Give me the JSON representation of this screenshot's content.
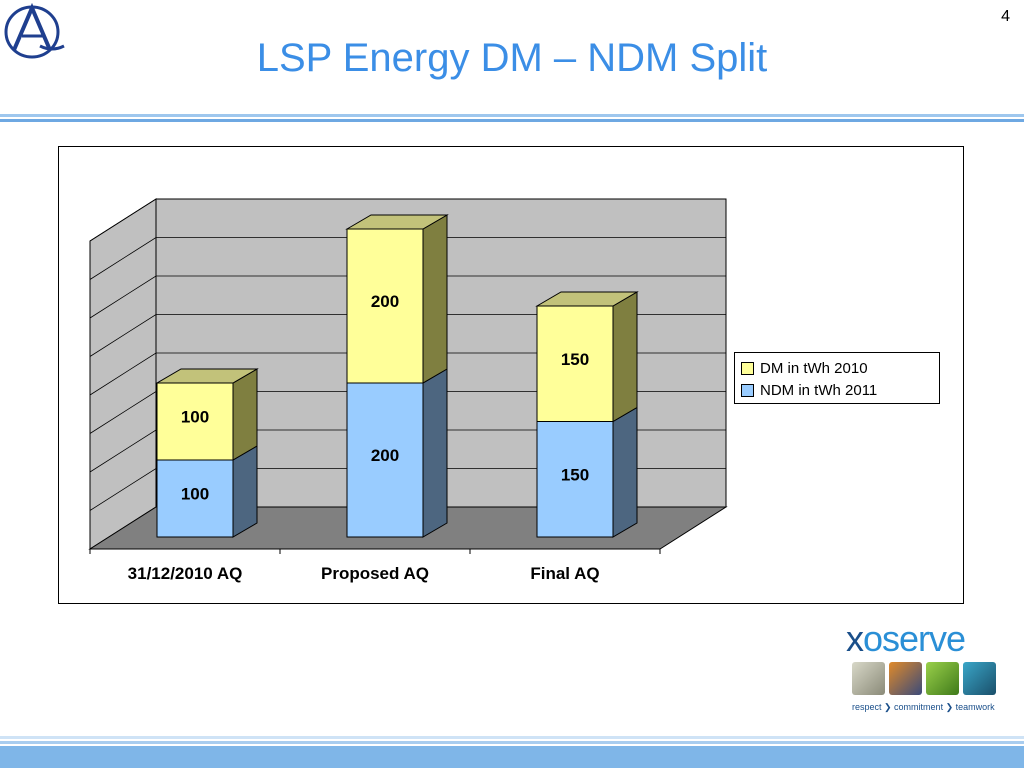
{
  "slide": {
    "title": "LSP Energy DM – NDM Split",
    "page_number": "4"
  },
  "logos": {
    "top_left": "a-emblem-logo",
    "bottom_right": {
      "name": "xoserve-logo",
      "word_prefix": "x",
      "word_mark": "o",
      "word_suffix": "serve",
      "tagline": "respect ❯ commitment ❯ teamwork"
    }
  },
  "colors": {
    "title": "#3b8ee6",
    "dm_front": "#ffff99",
    "dm_side": "#7f7f40",
    "dm_top": "#c2c27a",
    "ndm_front": "#99ccff",
    "ndm_side": "#4d6680",
    "ndm_top": "#7393b3",
    "wall": "#c0c0c0",
    "floor": "#808080"
  },
  "chart_data": {
    "type": "bar",
    "stacked": true,
    "three_d": true,
    "categories": [
      "31/12/2010 AQ",
      "Proposed AQ",
      "Final AQ"
    ],
    "series": [
      {
        "name": "NDM in tWh 2011",
        "values": [
          100,
          200,
          150
        ],
        "labels": [
          "100",
          "200",
          "150"
        ]
      },
      {
        "name": "DM in tWh 2010",
        "values": [
          100,
          200,
          150
        ],
        "labels": [
          "100",
          "200",
          "150"
        ]
      }
    ],
    "ylim": [
      0,
      400
    ],
    "ytick_step": 50,
    "gridlines": true,
    "legend_order": [
      "DM in tWh 2010",
      "NDM in tWh 2011"
    ],
    "legend_position": "right"
  }
}
